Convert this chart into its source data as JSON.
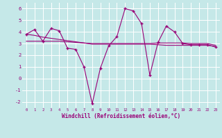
{
  "background_color": "#c5e8e8",
  "grid_color": "#ffffff",
  "line_color": "#990077",
  "marker": "+",
  "xlabel": "Windchill (Refroidissement éolien,°C)",
  "ylim": [
    -2.5,
    6.5
  ],
  "xlim": [
    -0.5,
    23.5
  ],
  "yticks": [
    -2,
    -1,
    0,
    1,
    2,
    3,
    4,
    5,
    6
  ],
  "xticks": [
    0,
    1,
    2,
    3,
    4,
    5,
    6,
    7,
    8,
    9,
    10,
    11,
    12,
    13,
    14,
    15,
    16,
    17,
    18,
    19,
    20,
    21,
    22,
    23
  ],
  "line1": [
    3.8,
    4.2,
    3.2,
    4.3,
    4.1,
    2.6,
    2.5,
    1.0,
    -2.15,
    0.9,
    2.8,
    3.6,
    6.0,
    5.8,
    4.7,
    0.3,
    3.1,
    4.5,
    4.0,
    3.0,
    2.9,
    2.9,
    2.9,
    2.7
  ],
  "line2": [
    3.2,
    3.2,
    3.2,
    3.2,
    3.2,
    3.15,
    3.1,
    3.05,
    3.0,
    3.0,
    3.0,
    3.0,
    3.0,
    3.0,
    3.0,
    3.0,
    3.05,
    3.05,
    3.05,
    3.05,
    3.0,
    3.0,
    3.0,
    2.85
  ],
  "line3": [
    3.8,
    3.7,
    3.55,
    3.45,
    3.35,
    3.25,
    3.15,
    3.05,
    2.95,
    2.95,
    2.95,
    2.95,
    2.95,
    2.95,
    2.95,
    2.95,
    2.9,
    2.85,
    2.85,
    2.85,
    2.85,
    2.85,
    2.85,
    2.75
  ]
}
